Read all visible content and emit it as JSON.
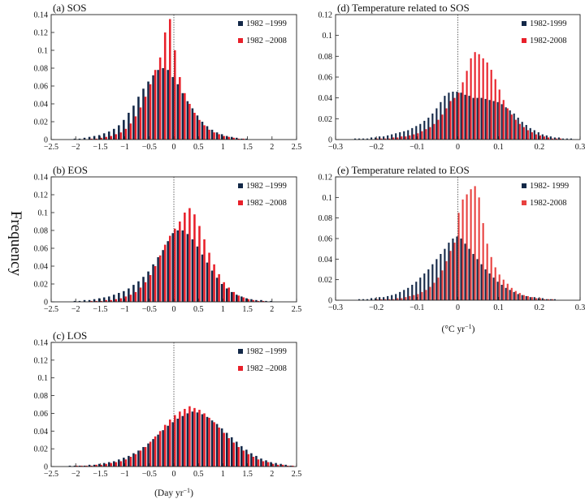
{
  "figure": {
    "ylabel": "Frequency",
    "xlabel_day": "(Day  yr",
    "xlabel_day_sup": "−1",
    "xlabel_day_end": ")",
    "xlabel_temp": "(°C  yr",
    "xlabel_temp_sup": "−1",
    "xlabel_temp_end": ")"
  },
  "colors": {
    "series1": "#132848",
    "series2": "#e8202a",
    "series2_light": "#e8413f"
  },
  "chart_data": [
    {
      "type": "bar",
      "title": "(a) SOS",
      "xlim": [
        -2.5,
        2.5
      ],
      "ylim": [
        0,
        0.14
      ],
      "xticks": [
        "−2.5",
        "−2",
        "−1.5",
        "−1",
        "−0.5",
        "0",
        "0.5",
        "1",
        "1.5",
        "2",
        "2.5"
      ],
      "yticks": [
        "0",
        "0.02",
        "0.04",
        "0.06",
        "0.08",
        "0.1",
        "0.12",
        "0.14"
      ],
      "reference_line_x": 0,
      "bin_width": 0.1,
      "x": [
        -2.2,
        -2.1,
        -2.0,
        -1.9,
        -1.8,
        -1.7,
        -1.6,
        -1.5,
        -1.4,
        -1.3,
        -1.2,
        -1.1,
        -1.0,
        -0.9,
        -0.8,
        -0.7,
        -0.6,
        -0.5,
        -0.4,
        -0.3,
        -0.2,
        -0.1,
        0.0,
        0.1,
        0.2,
        0.3,
        0.4,
        0.5,
        0.6,
        0.7,
        0.8,
        0.9,
        1.0,
        1.1,
        1.2,
        1.3,
        1.4,
        1.5,
        1.6,
        1.7,
        1.8,
        1.9,
        2.0
      ],
      "series": [
        {
          "name": "1982 –1999",
          "values": [
            0.0,
            0.0,
            0.001,
            0.001,
            0.002,
            0.003,
            0.004,
            0.005,
            0.007,
            0.009,
            0.012,
            0.016,
            0.022,
            0.03,
            0.038,
            0.048,
            0.057,
            0.065,
            0.072,
            0.078,
            0.08,
            0.078,
            0.07,
            0.062,
            0.052,
            0.043,
            0.035,
            0.027,
            0.02,
            0.015,
            0.011,
            0.008,
            0.006,
            0.004,
            0.003,
            0.002,
            0.001,
            0.001,
            0.0,
            0.0,
            0.0,
            0.0,
            0.0
          ]
        },
        {
          "name": "1982 –2008",
          "values": [
            0.0,
            0.0,
            0.0,
            0.0,
            0.0,
            0.001,
            0.001,
            0.002,
            0.003,
            0.004,
            0.006,
            0.008,
            0.012,
            0.018,
            0.026,
            0.036,
            0.048,
            0.062,
            0.078,
            0.092,
            0.12,
            0.135,
            0.1,
            0.07,
            0.052,
            0.04,
            0.03,
            0.022,
            0.016,
            0.011,
            0.008,
            0.006,
            0.004,
            0.003,
            0.002,
            0.001,
            0.001,
            0.0,
            0.0,
            0.0,
            0.0,
            0.0,
            0.0
          ]
        }
      ]
    },
    {
      "type": "bar",
      "title": "(b) EOS",
      "xlim": [
        -2.5,
        2.5
      ],
      "ylim": [
        0,
        0.14
      ],
      "xticks": [
        "−2.5",
        "−2",
        "−1.5",
        "−1",
        "−0.5",
        "0",
        "0.5",
        "1",
        "1.5",
        "2",
        "2.5"
      ],
      "yticks": [
        "0",
        "0.02",
        "0.04",
        "0.06",
        "0.08",
        "0.1",
        "0.12",
        "0.14"
      ],
      "reference_line_x": 0,
      "bin_width": 0.1,
      "x": [
        -2.0,
        -1.9,
        -1.8,
        -1.7,
        -1.6,
        -1.5,
        -1.4,
        -1.3,
        -1.2,
        -1.1,
        -1.0,
        -0.9,
        -0.8,
        -0.7,
        -0.6,
        -0.5,
        -0.4,
        -0.3,
        -0.2,
        -0.1,
        0.0,
        0.1,
        0.2,
        0.3,
        0.4,
        0.5,
        0.6,
        0.7,
        0.8,
        0.9,
        1.0,
        1.1,
        1.2,
        1.3,
        1.4,
        1.5,
        1.6,
        1.7,
        1.8,
        1.9,
        2.0
      ],
      "series": [
        {
          "name": "1982 –1999",
          "values": [
            0.001,
            0.001,
            0.002,
            0.002,
            0.003,
            0.004,
            0.005,
            0.006,
            0.008,
            0.01,
            0.012,
            0.015,
            0.019,
            0.023,
            0.028,
            0.034,
            0.042,
            0.05,
            0.058,
            0.068,
            0.077,
            0.08,
            0.08,
            0.076,
            0.07,
            0.062,
            0.053,
            0.044,
            0.035,
            0.027,
            0.02,
            0.015,
            0.011,
            0.008,
            0.006,
            0.004,
            0.003,
            0.002,
            0.002,
            0.001,
            0.001
          ]
        },
        {
          "name": "1982 –2008",
          "values": [
            0.0,
            0.0,
            0.0,
            0.001,
            0.001,
            0.001,
            0.002,
            0.002,
            0.003,
            0.004,
            0.006,
            0.008,
            0.011,
            0.016,
            0.022,
            0.03,
            0.04,
            0.052,
            0.064,
            0.074,
            0.082,
            0.09,
            0.1,
            0.105,
            0.098,
            0.085,
            0.07,
            0.055,
            0.042,
            0.031,
            0.022,
            0.016,
            0.011,
            0.007,
            0.005,
            0.003,
            0.002,
            0.001,
            0.001,
            0.0,
            0.0
          ]
        }
      ]
    },
    {
      "type": "bar",
      "title": "(c) LOS",
      "xlim": [
        -2.5,
        2.5
      ],
      "ylim": [
        0,
        0.14
      ],
      "xticks": [
        "−2.5",
        "−2",
        "−1.5",
        "−1",
        "−0.5",
        "0",
        "0.5",
        "1",
        "1.5",
        "2",
        "2.5"
      ],
      "yticks": [
        "0",
        "0.02",
        "0.04",
        "0.06",
        "0.08",
        "0.1",
        "0.12",
        "0.14"
      ],
      "reference_line_x": 0,
      "bin_width": 0.1,
      "x": [
        -2.4,
        -2.3,
        -2.2,
        -2.1,
        -2.0,
        -1.9,
        -1.8,
        -1.7,
        -1.6,
        -1.5,
        -1.4,
        -1.3,
        -1.2,
        -1.1,
        -1.0,
        -0.9,
        -0.8,
        -0.7,
        -0.6,
        -0.5,
        -0.4,
        -0.3,
        -0.2,
        -0.1,
        0.0,
        0.1,
        0.2,
        0.3,
        0.4,
        0.5,
        0.6,
        0.7,
        0.8,
        0.9,
        1.0,
        1.1,
        1.2,
        1.3,
        1.4,
        1.5,
        1.6,
        1.7,
        1.8,
        1.9,
        2.0,
        2.1,
        2.2,
        2.3,
        2.4
      ],
      "series": [
        {
          "name": "1982 –1999",
          "values": [
            0.0,
            0.0,
            0.0,
            0.001,
            0.001,
            0.001,
            0.001,
            0.002,
            0.002,
            0.003,
            0.004,
            0.005,
            0.006,
            0.008,
            0.01,
            0.012,
            0.015,
            0.018,
            0.022,
            0.026,
            0.031,
            0.036,
            0.041,
            0.046,
            0.05,
            0.054,
            0.057,
            0.06,
            0.062,
            0.061,
            0.059,
            0.056,
            0.052,
            0.048,
            0.043,
            0.038,
            0.033,
            0.028,
            0.023,
            0.019,
            0.015,
            0.012,
            0.009,
            0.007,
            0.005,
            0.004,
            0.003,
            0.002,
            0.001
          ]
        },
        {
          "name": "1982 –2008",
          "values": [
            0.0,
            0.0,
            0.0,
            0.0,
            0.001,
            0.001,
            0.001,
            0.001,
            0.002,
            0.002,
            0.003,
            0.004,
            0.005,
            0.006,
            0.008,
            0.011,
            0.014,
            0.018,
            0.022,
            0.028,
            0.034,
            0.04,
            0.047,
            0.053,
            0.058,
            0.062,
            0.065,
            0.068,
            0.066,
            0.064,
            0.06,
            0.055,
            0.05,
            0.044,
            0.038,
            0.032,
            0.027,
            0.022,
            0.018,
            0.014,
            0.011,
            0.008,
            0.006,
            0.005,
            0.003,
            0.002,
            0.002,
            0.001,
            0.001
          ]
        }
      ]
    },
    {
      "type": "bar",
      "title": "(d) Temperature related to SOS",
      "xlim": [
        -0.3,
        0.3
      ],
      "ylim": [
        0,
        0.12
      ],
      "xticks": [
        "−0.3",
        "−0.2",
        "−0.1",
        "0",
        "0.1",
        "0.2",
        "0.3"
      ],
      "yticks": [
        "0",
        "0.02",
        "0.04",
        "0.06",
        "0.08",
        "0.1",
        "0.12"
      ],
      "reference_line_x": 0,
      "bin_width": 0.01,
      "x": [
        -0.28,
        -0.27,
        -0.26,
        -0.25,
        -0.24,
        -0.23,
        -0.22,
        -0.21,
        -0.2,
        -0.19,
        -0.18,
        -0.17,
        -0.16,
        -0.15,
        -0.14,
        -0.13,
        -0.12,
        -0.11,
        -0.1,
        -0.09,
        -0.08,
        -0.07,
        -0.06,
        -0.05,
        -0.04,
        -0.03,
        -0.02,
        -0.01,
        0.0,
        0.01,
        0.02,
        0.03,
        0.04,
        0.05,
        0.06,
        0.07,
        0.08,
        0.09,
        0.1,
        0.11,
        0.12,
        0.13,
        0.14,
        0.15,
        0.16,
        0.17,
        0.18,
        0.19,
        0.2,
        0.21,
        0.22,
        0.23,
        0.24,
        0.25,
        0.26,
        0.27,
        0.28
      ],
      "series": [
        {
          "name": "1982-1999",
          "values": [
            0.0,
            0.0,
            0.0,
            0.001,
            0.001,
            0.001,
            0.001,
            0.002,
            0.002,
            0.003,
            0.003,
            0.004,
            0.005,
            0.006,
            0.007,
            0.008,
            0.009,
            0.011,
            0.013,
            0.015,
            0.018,
            0.021,
            0.025,
            0.03,
            0.036,
            0.042,
            0.045,
            0.046,
            0.046,
            0.045,
            0.043,
            0.042,
            0.04,
            0.04,
            0.04,
            0.039,
            0.038,
            0.037,
            0.036,
            0.034,
            0.031,
            0.028,
            0.025,
            0.021,
            0.017,
            0.014,
            0.011,
            0.009,
            0.007,
            0.005,
            0.004,
            0.003,
            0.002,
            0.002,
            0.001,
            0.001,
            0.001
          ]
        },
        {
          "name": "1982-2008",
          "values": [
            0.0,
            0.0,
            0.0,
            0.0,
            0.0,
            0.0,
            0.0,
            0.0,
            0.001,
            0.001,
            0.001,
            0.001,
            0.002,
            0.002,
            0.003,
            0.003,
            0.004,
            0.005,
            0.006,
            0.008,
            0.01,
            0.012,
            0.015,
            0.019,
            0.024,
            0.03,
            0.037,
            0.04,
            0.045,
            0.055,
            0.066,
            0.078,
            0.084,
            0.082,
            0.078,
            0.074,
            0.067,
            0.058,
            0.048,
            0.038,
            0.03,
            0.024,
            0.019,
            0.015,
            0.012,
            0.009,
            0.007,
            0.005,
            0.004,
            0.003,
            0.002,
            0.001,
            0.001,
            0.001,
            0.0,
            0.0,
            0.0
          ]
        }
      ]
    },
    {
      "type": "bar",
      "title": "(e) Temperature related to EOS",
      "xlim": [
        -0.3,
        0.3
      ],
      "ylim": [
        0,
        0.12
      ],
      "xticks": [
        "−0.3",
        "−0.2",
        "−0.1",
        "0",
        "0.1",
        "0.2",
        "0.3"
      ],
      "yticks": [
        "0",
        "0.02",
        "0.04",
        "0.06",
        "0.08",
        "0.1",
        "0.12"
      ],
      "reference_line_x": 0,
      "bin_width": 0.01,
      "x": [
        -0.28,
        -0.27,
        -0.26,
        -0.25,
        -0.24,
        -0.23,
        -0.22,
        -0.21,
        -0.2,
        -0.19,
        -0.18,
        -0.17,
        -0.16,
        -0.15,
        -0.14,
        -0.13,
        -0.12,
        -0.11,
        -0.1,
        -0.09,
        -0.08,
        -0.07,
        -0.06,
        -0.05,
        -0.04,
        -0.03,
        -0.02,
        -0.01,
        0.0,
        0.01,
        0.02,
        0.03,
        0.04,
        0.05,
        0.06,
        0.07,
        0.08,
        0.09,
        0.1,
        0.11,
        0.12,
        0.13,
        0.14,
        0.15,
        0.16,
        0.17,
        0.18,
        0.19,
        0.2,
        0.21,
        0.22,
        0.23,
        0.24,
        0.25,
        0.26,
        0.27,
        0.28
      ],
      "series": [
        {
          "name": "1982- 1999",
          "values": [
            0.0,
            0.0,
            0.0,
            0.0,
            0.001,
            0.001,
            0.001,
            0.002,
            0.002,
            0.003,
            0.003,
            0.004,
            0.005,
            0.006,
            0.008,
            0.01,
            0.012,
            0.015,
            0.018,
            0.022,
            0.026,
            0.03,
            0.035,
            0.04,
            0.045,
            0.05,
            0.056,
            0.06,
            0.062,
            0.06,
            0.055,
            0.05,
            0.045,
            0.04,
            0.035,
            0.03,
            0.026,
            0.022,
            0.018,
            0.015,
            0.012,
            0.01,
            0.008,
            0.006,
            0.005,
            0.004,
            0.003,
            0.003,
            0.002,
            0.002,
            0.001,
            0.001,
            0.001,
            0.0,
            0.0,
            0.0,
            0.0
          ]
        },
        {
          "name": "1982-2008",
          "values": [
            0.0,
            0.0,
            0.0,
            0.0,
            0.0,
            0.0,
            0.0,
            0.0,
            0.001,
            0.001,
            0.001,
            0.001,
            0.001,
            0.002,
            0.002,
            0.003,
            0.004,
            0.005,
            0.006,
            0.008,
            0.01,
            0.013,
            0.017,
            0.022,
            0.029,
            0.038,
            0.048,
            0.056,
            0.085,
            0.098,
            0.103,
            0.108,
            0.111,
            0.1,
            0.075,
            0.055,
            0.042,
            0.032,
            0.025,
            0.02,
            0.016,
            0.012,
            0.009,
            0.007,
            0.005,
            0.004,
            0.003,
            0.002,
            0.002,
            0.001,
            0.001,
            0.001,
            0.0,
            0.0,
            0.0,
            0.0,
            0.0
          ]
        }
      ]
    }
  ]
}
